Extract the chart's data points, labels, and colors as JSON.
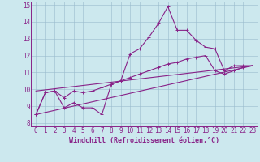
{
  "background_color": "#cce8ee",
  "line_color": "#882288",
  "grid_color": "#99bbcc",
  "xlim": [
    -0.5,
    23.5
  ],
  "ylim": [
    7.8,
    15.2
  ],
  "yticks": [
    8,
    9,
    10,
    11,
    12,
    13,
    14,
    15
  ],
  "xticks": [
    0,
    1,
    2,
    3,
    4,
    5,
    6,
    7,
    8,
    9,
    10,
    11,
    12,
    13,
    14,
    15,
    16,
    17,
    18,
    19,
    20,
    21,
    22,
    23
  ],
  "xlabel": "Windchill (Refroidissement éolien,°C)",
  "series1_x": [
    0,
    1,
    2,
    3,
    4,
    5,
    6,
    7,
    8,
    9,
    10,
    11,
    12,
    13,
    14,
    15,
    16,
    17,
    18,
    19,
    20,
    21,
    22,
    23
  ],
  "series1_y": [
    8.5,
    9.8,
    9.9,
    8.9,
    9.2,
    8.9,
    8.9,
    8.5,
    10.3,
    10.5,
    12.1,
    12.4,
    13.1,
    13.9,
    14.9,
    13.5,
    13.5,
    12.9,
    12.5,
    12.4,
    11.1,
    11.4,
    11.4,
    11.4
  ],
  "series2_x": [
    0,
    1,
    2,
    3,
    4,
    5,
    6,
    7,
    8,
    9,
    10,
    11,
    12,
    13,
    14,
    15,
    16,
    17,
    18,
    19,
    20,
    21,
    22,
    23
  ],
  "series2_y": [
    8.5,
    9.8,
    9.9,
    9.5,
    9.9,
    9.8,
    9.9,
    10.1,
    10.3,
    10.5,
    10.7,
    10.9,
    11.1,
    11.3,
    11.5,
    11.6,
    11.8,
    11.9,
    12.0,
    11.1,
    10.9,
    11.1,
    11.3,
    11.4
  ],
  "series3_x": [
    0,
    23
  ],
  "series3_y": [
    8.5,
    11.4
  ],
  "series4_x": [
    0,
    23
  ],
  "series4_y": [
    9.9,
    11.4
  ],
  "font_size": 5.5,
  "xlabel_fontsize": 6.0,
  "marker_size": 2.5,
  "line_width": 0.8
}
